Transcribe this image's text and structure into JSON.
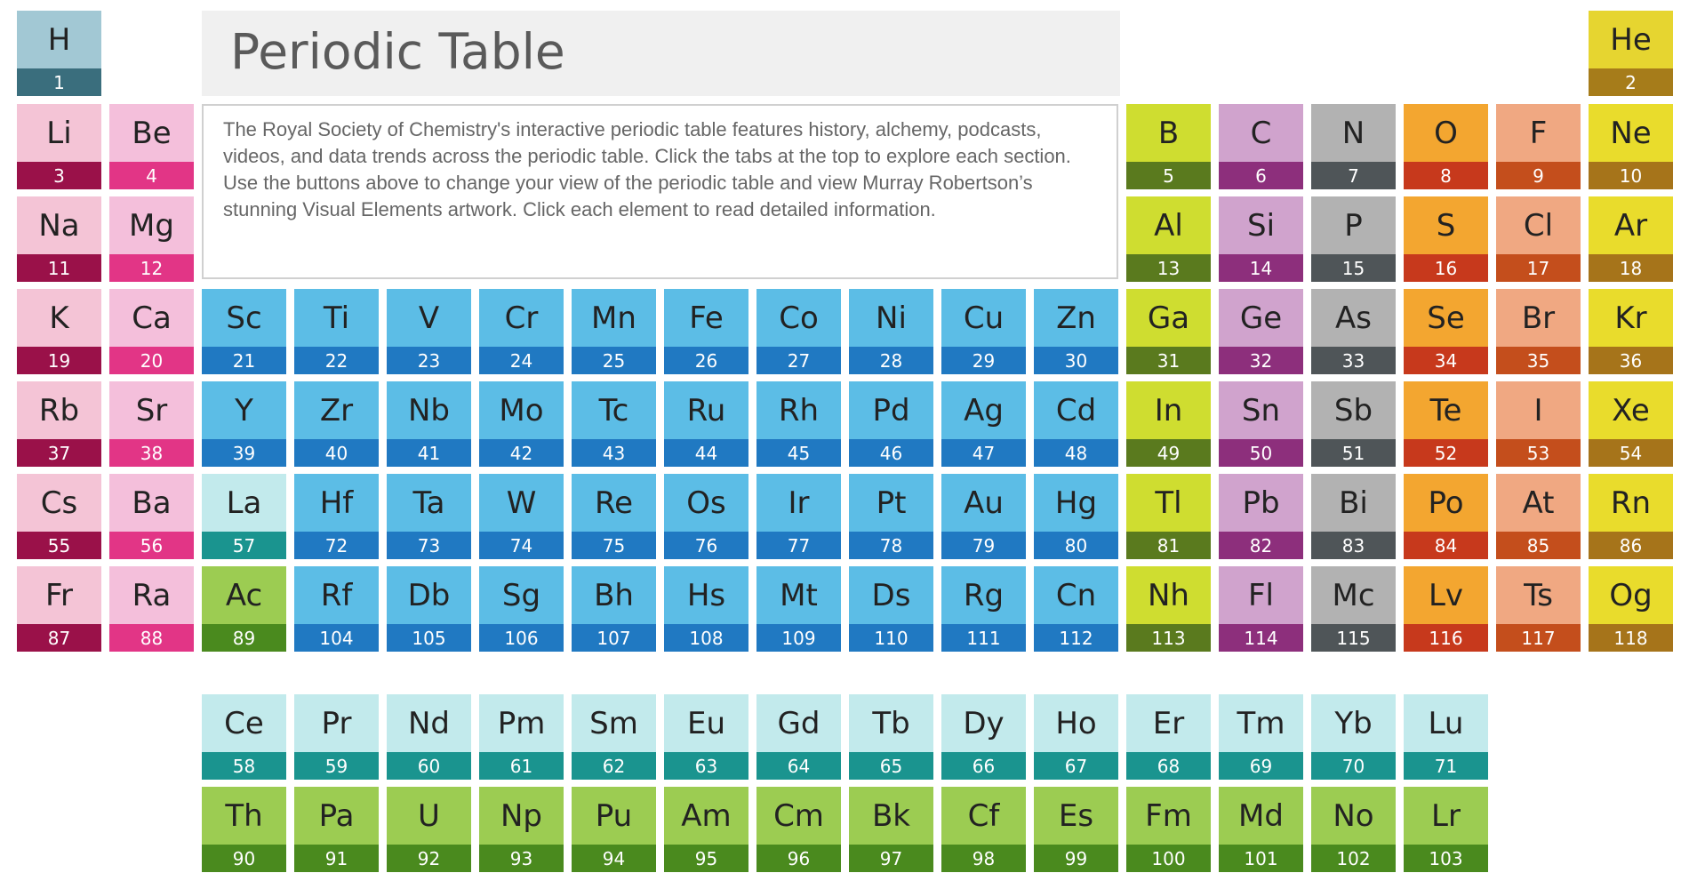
{
  "header": {
    "title": "Periodic Table",
    "description": "The Royal Society of Chemistry's interactive periodic table features history, alchemy, podcasts, videos, and data trends across the periodic table. Click the tabs at the top to explore each section. Use the buttons above to change your view of the periodic table and view Murray Robertson’s stunning Visual Elements artwork. Click each element to read detailed information."
  },
  "colors": {
    "hydrogen": [
      "#a2c8d4",
      "#3a6e7d"
    ],
    "helium": [
      "#e6d530",
      "#a67c1a"
    ],
    "alkali": [
      "#f4c4d6",
      "#9a1149"
    ],
    "alkaline": [
      "#f4bfdb",
      "#e23586"
    ],
    "transition": [
      "#5cbde6",
      "#2079c2"
    ],
    "lanthanide": [
      "#c2eaec",
      "#1a948f"
    ],
    "actinide": [
      "#9ccc52",
      "#4a8a1e"
    ],
    "boron_group": [
      "#cfdd30",
      "#5a7a1e"
    ],
    "carbon_group": [
      "#d0a3cd",
      "#8d2f7c"
    ],
    "pnictogen": [
      "#b2b2b2",
      "#4f5558"
    ],
    "chalcogen": [
      "#f3a630",
      "#c7391c"
    ],
    "halogen": [
      "#f0a882",
      "#c44e1c"
    ],
    "noble": [
      "#e9dc2c",
      "#a6741a"
    ]
  },
  "elements": [
    {
      "symbol": "H",
      "number": "1",
      "group": "hydrogen",
      "col": 1,
      "row": 1
    },
    {
      "symbol": "He",
      "number": "2",
      "group": "helium",
      "col": 18,
      "row": 1
    },
    {
      "symbol": "Li",
      "number": "3",
      "group": "alkali",
      "col": 1,
      "row": 2
    },
    {
      "symbol": "Be",
      "number": "4",
      "group": "alkaline",
      "col": 2,
      "row": 2
    },
    {
      "symbol": "B",
      "number": "5",
      "group": "boron_group",
      "col": 13,
      "row": 2
    },
    {
      "symbol": "C",
      "number": "6",
      "group": "carbon_group",
      "col": 14,
      "row": 2
    },
    {
      "symbol": "N",
      "number": "7",
      "group": "pnictogen",
      "col": 15,
      "row": 2
    },
    {
      "symbol": "O",
      "number": "8",
      "group": "chalcogen",
      "col": 16,
      "row": 2
    },
    {
      "symbol": "F",
      "number": "9",
      "group": "halogen",
      "col": 17,
      "row": 2
    },
    {
      "symbol": "Ne",
      "number": "10",
      "group": "noble",
      "col": 18,
      "row": 2
    },
    {
      "symbol": "Na",
      "number": "11",
      "group": "alkali",
      "col": 1,
      "row": 3
    },
    {
      "symbol": "Mg",
      "number": "12",
      "group": "alkaline",
      "col": 2,
      "row": 3
    },
    {
      "symbol": "Al",
      "number": "13",
      "group": "boron_group",
      "col": 13,
      "row": 3
    },
    {
      "symbol": "Si",
      "number": "14",
      "group": "carbon_group",
      "col": 14,
      "row": 3
    },
    {
      "symbol": "P",
      "number": "15",
      "group": "pnictogen",
      "col": 15,
      "row": 3
    },
    {
      "symbol": "S",
      "number": "16",
      "group": "chalcogen",
      "col": 16,
      "row": 3
    },
    {
      "symbol": "Cl",
      "number": "17",
      "group": "halogen",
      "col": 17,
      "row": 3
    },
    {
      "symbol": "Ar",
      "number": "18",
      "group": "noble",
      "col": 18,
      "row": 3
    },
    {
      "symbol": "K",
      "number": "19",
      "group": "alkali",
      "col": 1,
      "row": 4
    },
    {
      "symbol": "Ca",
      "number": "20",
      "group": "alkaline",
      "col": 2,
      "row": 4
    },
    {
      "symbol": "Sc",
      "number": "21",
      "group": "transition",
      "col": 3,
      "row": 4
    },
    {
      "symbol": "Ti",
      "number": "22",
      "group": "transition",
      "col": 4,
      "row": 4
    },
    {
      "symbol": "V",
      "number": "23",
      "group": "transition",
      "col": 5,
      "row": 4
    },
    {
      "symbol": "Cr",
      "number": "24",
      "group": "transition",
      "col": 6,
      "row": 4
    },
    {
      "symbol": "Mn",
      "number": "25",
      "group": "transition",
      "col": 7,
      "row": 4
    },
    {
      "symbol": "Fe",
      "number": "26",
      "group": "transition",
      "col": 8,
      "row": 4
    },
    {
      "symbol": "Co",
      "number": "27",
      "group": "transition",
      "col": 9,
      "row": 4
    },
    {
      "symbol": "Ni",
      "number": "28",
      "group": "transition",
      "col": 10,
      "row": 4
    },
    {
      "symbol": "Cu",
      "number": "29",
      "group": "transition",
      "col": 11,
      "row": 4
    },
    {
      "symbol": "Zn",
      "number": "30",
      "group": "transition",
      "col": 12,
      "row": 4
    },
    {
      "symbol": "Ga",
      "number": "31",
      "group": "boron_group",
      "col": 13,
      "row": 4
    },
    {
      "symbol": "Ge",
      "number": "32",
      "group": "carbon_group",
      "col": 14,
      "row": 4
    },
    {
      "symbol": "As",
      "number": "33",
      "group": "pnictogen",
      "col": 15,
      "row": 4
    },
    {
      "symbol": "Se",
      "number": "34",
      "group": "chalcogen",
      "col": 16,
      "row": 4
    },
    {
      "symbol": "Br",
      "number": "35",
      "group": "halogen",
      "col": 17,
      "row": 4
    },
    {
      "symbol": "Kr",
      "number": "36",
      "group": "noble",
      "col": 18,
      "row": 4
    },
    {
      "symbol": "Rb",
      "number": "37",
      "group": "alkali",
      "col": 1,
      "row": 5
    },
    {
      "symbol": "Sr",
      "number": "38",
      "group": "alkaline",
      "col": 2,
      "row": 5
    },
    {
      "symbol": "Y",
      "number": "39",
      "group": "transition",
      "col": 3,
      "row": 5
    },
    {
      "symbol": "Zr",
      "number": "40",
      "group": "transition",
      "col": 4,
      "row": 5
    },
    {
      "symbol": "Nb",
      "number": "41",
      "group": "transition",
      "col": 5,
      "row": 5
    },
    {
      "symbol": "Mo",
      "number": "42",
      "group": "transition",
      "col": 6,
      "row": 5
    },
    {
      "symbol": "Tc",
      "number": "43",
      "group": "transition",
      "col": 7,
      "row": 5
    },
    {
      "symbol": "Ru",
      "number": "44",
      "group": "transition",
      "col": 8,
      "row": 5
    },
    {
      "symbol": "Rh",
      "number": "45",
      "group": "transition",
      "col": 9,
      "row": 5
    },
    {
      "symbol": "Pd",
      "number": "46",
      "group": "transition",
      "col": 10,
      "row": 5
    },
    {
      "symbol": "Ag",
      "number": "47",
      "group": "transition",
      "col": 11,
      "row": 5
    },
    {
      "symbol": "Cd",
      "number": "48",
      "group": "transition",
      "col": 12,
      "row": 5
    },
    {
      "symbol": "In",
      "number": "49",
      "group": "boron_group",
      "col": 13,
      "row": 5
    },
    {
      "symbol": "Sn",
      "number": "50",
      "group": "carbon_group",
      "col": 14,
      "row": 5
    },
    {
      "symbol": "Sb",
      "number": "51",
      "group": "pnictogen",
      "col": 15,
      "row": 5
    },
    {
      "symbol": "Te",
      "number": "52",
      "group": "chalcogen",
      "col": 16,
      "row": 5
    },
    {
      "symbol": "I",
      "number": "53",
      "group": "halogen",
      "col": 17,
      "row": 5
    },
    {
      "symbol": "Xe",
      "number": "54",
      "group": "noble",
      "col": 18,
      "row": 5
    },
    {
      "symbol": "Cs",
      "number": "55",
      "group": "alkali",
      "col": 1,
      "row": 6
    },
    {
      "symbol": "Ba",
      "number": "56",
      "group": "alkaline",
      "col": 2,
      "row": 6
    },
    {
      "symbol": "La",
      "number": "57",
      "group": "lanthanide",
      "col": 3,
      "row": 6
    },
    {
      "symbol": "Hf",
      "number": "72",
      "group": "transition",
      "col": 4,
      "row": 6
    },
    {
      "symbol": "Ta",
      "number": "73",
      "group": "transition",
      "col": 5,
      "row": 6
    },
    {
      "symbol": "W",
      "number": "74",
      "group": "transition",
      "col": 6,
      "row": 6
    },
    {
      "symbol": "Re",
      "number": "75",
      "group": "transition",
      "col": 7,
      "row": 6
    },
    {
      "symbol": "Os",
      "number": "76",
      "group": "transition",
      "col": 8,
      "row": 6
    },
    {
      "symbol": "Ir",
      "number": "77",
      "group": "transition",
      "col": 9,
      "row": 6
    },
    {
      "symbol": "Pt",
      "number": "78",
      "group": "transition",
      "col": 10,
      "row": 6
    },
    {
      "symbol": "Au",
      "number": "79",
      "group": "transition",
      "col": 11,
      "row": 6
    },
    {
      "symbol": "Hg",
      "number": "80",
      "group": "transition",
      "col": 12,
      "row": 6
    },
    {
      "symbol": "Tl",
      "number": "81",
      "group": "boron_group",
      "col": 13,
      "row": 6
    },
    {
      "symbol": "Pb",
      "number": "82",
      "group": "carbon_group",
      "col": 14,
      "row": 6
    },
    {
      "symbol": "Bi",
      "number": "83",
      "group": "pnictogen",
      "col": 15,
      "row": 6
    },
    {
      "symbol": "Po",
      "number": "84",
      "group": "chalcogen",
      "col": 16,
      "row": 6
    },
    {
      "symbol": "At",
      "number": "85",
      "group": "halogen",
      "col": 17,
      "row": 6
    },
    {
      "symbol": "Rn",
      "number": "86",
      "group": "noble",
      "col": 18,
      "row": 6
    },
    {
      "symbol": "Fr",
      "number": "87",
      "group": "alkali",
      "col": 1,
      "row": 7
    },
    {
      "symbol": "Ra",
      "number": "88",
      "group": "alkaline",
      "col": 2,
      "row": 7
    },
    {
      "symbol": "Ac",
      "number": "89",
      "group": "actinide",
      "col": 3,
      "row": 7
    },
    {
      "symbol": "Rf",
      "number": "104",
      "group": "transition",
      "col": 4,
      "row": 7
    },
    {
      "symbol": "Db",
      "number": "105",
      "group": "transition",
      "col": 5,
      "row": 7
    },
    {
      "symbol": "Sg",
      "number": "106",
      "group": "transition",
      "col": 6,
      "row": 7
    },
    {
      "symbol": "Bh",
      "number": "107",
      "group": "transition",
      "col": 7,
      "row": 7
    },
    {
      "symbol": "Hs",
      "number": "108",
      "group": "transition",
      "col": 8,
      "row": 7
    },
    {
      "symbol": "Mt",
      "number": "109",
      "group": "transition",
      "col": 9,
      "row": 7
    },
    {
      "symbol": "Ds",
      "number": "110",
      "group": "transition",
      "col": 10,
      "row": 7
    },
    {
      "symbol": "Rg",
      "number": "111",
      "group": "transition",
      "col": 11,
      "row": 7
    },
    {
      "symbol": "Cn",
      "number": "112",
      "group": "transition",
      "col": 12,
      "row": 7
    },
    {
      "symbol": "Nh",
      "number": "113",
      "group": "boron_group",
      "col": 13,
      "row": 7
    },
    {
      "symbol": "Fl",
      "number": "114",
      "group": "carbon_group",
      "col": 14,
      "row": 7
    },
    {
      "symbol": "Mc",
      "number": "115",
      "group": "pnictogen",
      "col": 15,
      "row": 7
    },
    {
      "symbol": "Lv",
      "number": "116",
      "group": "chalcogen",
      "col": 16,
      "row": 7
    },
    {
      "symbol": "Ts",
      "number": "117",
      "group": "halogen",
      "col": 17,
      "row": 7
    },
    {
      "symbol": "Og",
      "number": "118",
      "group": "noble",
      "col": 18,
      "row": 7
    },
    {
      "symbol": "Ce",
      "number": "58",
      "group": "lanthanide",
      "col": 3,
      "row": 9
    },
    {
      "symbol": "Pr",
      "number": "59",
      "group": "lanthanide",
      "col": 4,
      "row": 9
    },
    {
      "symbol": "Nd",
      "number": "60",
      "group": "lanthanide",
      "col": 5,
      "row": 9
    },
    {
      "symbol": "Pm",
      "number": "61",
      "group": "lanthanide",
      "col": 6,
      "row": 9
    },
    {
      "symbol": "Sm",
      "number": "62",
      "group": "lanthanide",
      "col": 7,
      "row": 9
    },
    {
      "symbol": "Eu",
      "number": "63",
      "group": "lanthanide",
      "col": 8,
      "row": 9
    },
    {
      "symbol": "Gd",
      "number": "64",
      "group": "lanthanide",
      "col": 9,
      "row": 9
    },
    {
      "symbol": "Tb",
      "number": "65",
      "group": "lanthanide",
      "col": 10,
      "row": 9
    },
    {
      "symbol": "Dy",
      "number": "66",
      "group": "lanthanide",
      "col": 11,
      "row": 9
    },
    {
      "symbol": "Ho",
      "number": "67",
      "group": "lanthanide",
      "col": 12,
      "row": 9
    },
    {
      "symbol": "Er",
      "number": "68",
      "group": "lanthanide",
      "col": 13,
      "row": 9
    },
    {
      "symbol": "Tm",
      "number": "69",
      "group": "lanthanide",
      "col": 14,
      "row": 9
    },
    {
      "symbol": "Yb",
      "number": "70",
      "group": "lanthanide",
      "col": 15,
      "row": 9
    },
    {
      "symbol": "Lu",
      "number": "71",
      "group": "lanthanide",
      "col": 16,
      "row": 9
    },
    {
      "symbol": "Th",
      "number": "90",
      "group": "actinide",
      "col": 3,
      "row": 10
    },
    {
      "symbol": "Pa",
      "number": "91",
      "group": "actinide",
      "col": 4,
      "row": 10
    },
    {
      "symbol": "U",
      "number": "92",
      "group": "actinide",
      "col": 5,
      "row": 10
    },
    {
      "symbol": "Np",
      "number": "93",
      "group": "actinide",
      "col": 6,
      "row": 10
    },
    {
      "symbol": "Pu",
      "number": "94",
      "group": "actinide",
      "col": 7,
      "row": 10
    },
    {
      "symbol": "Am",
      "number": "95",
      "group": "actinide",
      "col": 8,
      "row": 10
    },
    {
      "symbol": "Cm",
      "number": "96",
      "group": "actinide",
      "col": 9,
      "row": 10
    },
    {
      "symbol": "Bk",
      "number": "97",
      "group": "actinide",
      "col": 10,
      "row": 10
    },
    {
      "symbol": "Cf",
      "number": "98",
      "group": "actinide",
      "col": 11,
      "row": 10
    },
    {
      "symbol": "Es",
      "number": "99",
      "group": "actinide",
      "col": 12,
      "row": 10
    },
    {
      "symbol": "Fm",
      "number": "100",
      "group": "actinide",
      "col": 13,
      "row": 10
    },
    {
      "symbol": "Md",
      "number": "101",
      "group": "actinide",
      "col": 14,
      "row": 10
    },
    {
      "symbol": "No",
      "number": "102",
      "group": "actinide",
      "col": 15,
      "row": 10
    },
    {
      "symbol": "Lr",
      "number": "103",
      "group": "actinide",
      "col": 16,
      "row": 10
    }
  ]
}
